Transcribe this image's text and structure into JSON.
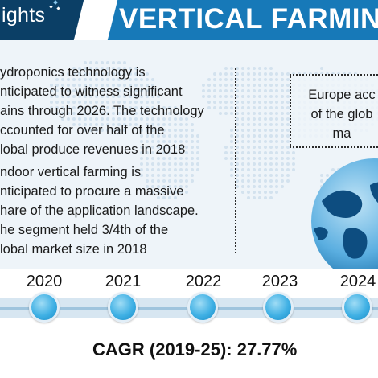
{
  "header": {
    "logo_text": "ights",
    "title": "VERTICAL FARMING"
  },
  "bullets": [
    {
      "lines": [
        "ydroponics technology is",
        "nticipated to witness significant",
        "ains through 2026. The technology",
        "ccounted for over half of the",
        "lobal produce revenues in 2018"
      ]
    },
    {
      "lines": [
        "ndoor vertical farming is",
        "nticipated to procure a massive",
        "hare of the application landscape.",
        "he segment held 3/4th of the",
        "lobal market size in 2018"
      ]
    }
  ],
  "callout": {
    "lines": [
      "Europe acc",
      "of the glob",
      "ma"
    ]
  },
  "timeline": {
    "years": [
      "2020",
      "2021",
      "2022",
      "2023",
      "2024"
    ]
  },
  "cagr": "CAGR (2019-25): 27.77%",
  "colors": {
    "logo_bg": "#0b3f66",
    "title_bg": "#1779b8",
    "content_bg": "#eef4f9",
    "node": "#3fb0e4"
  }
}
